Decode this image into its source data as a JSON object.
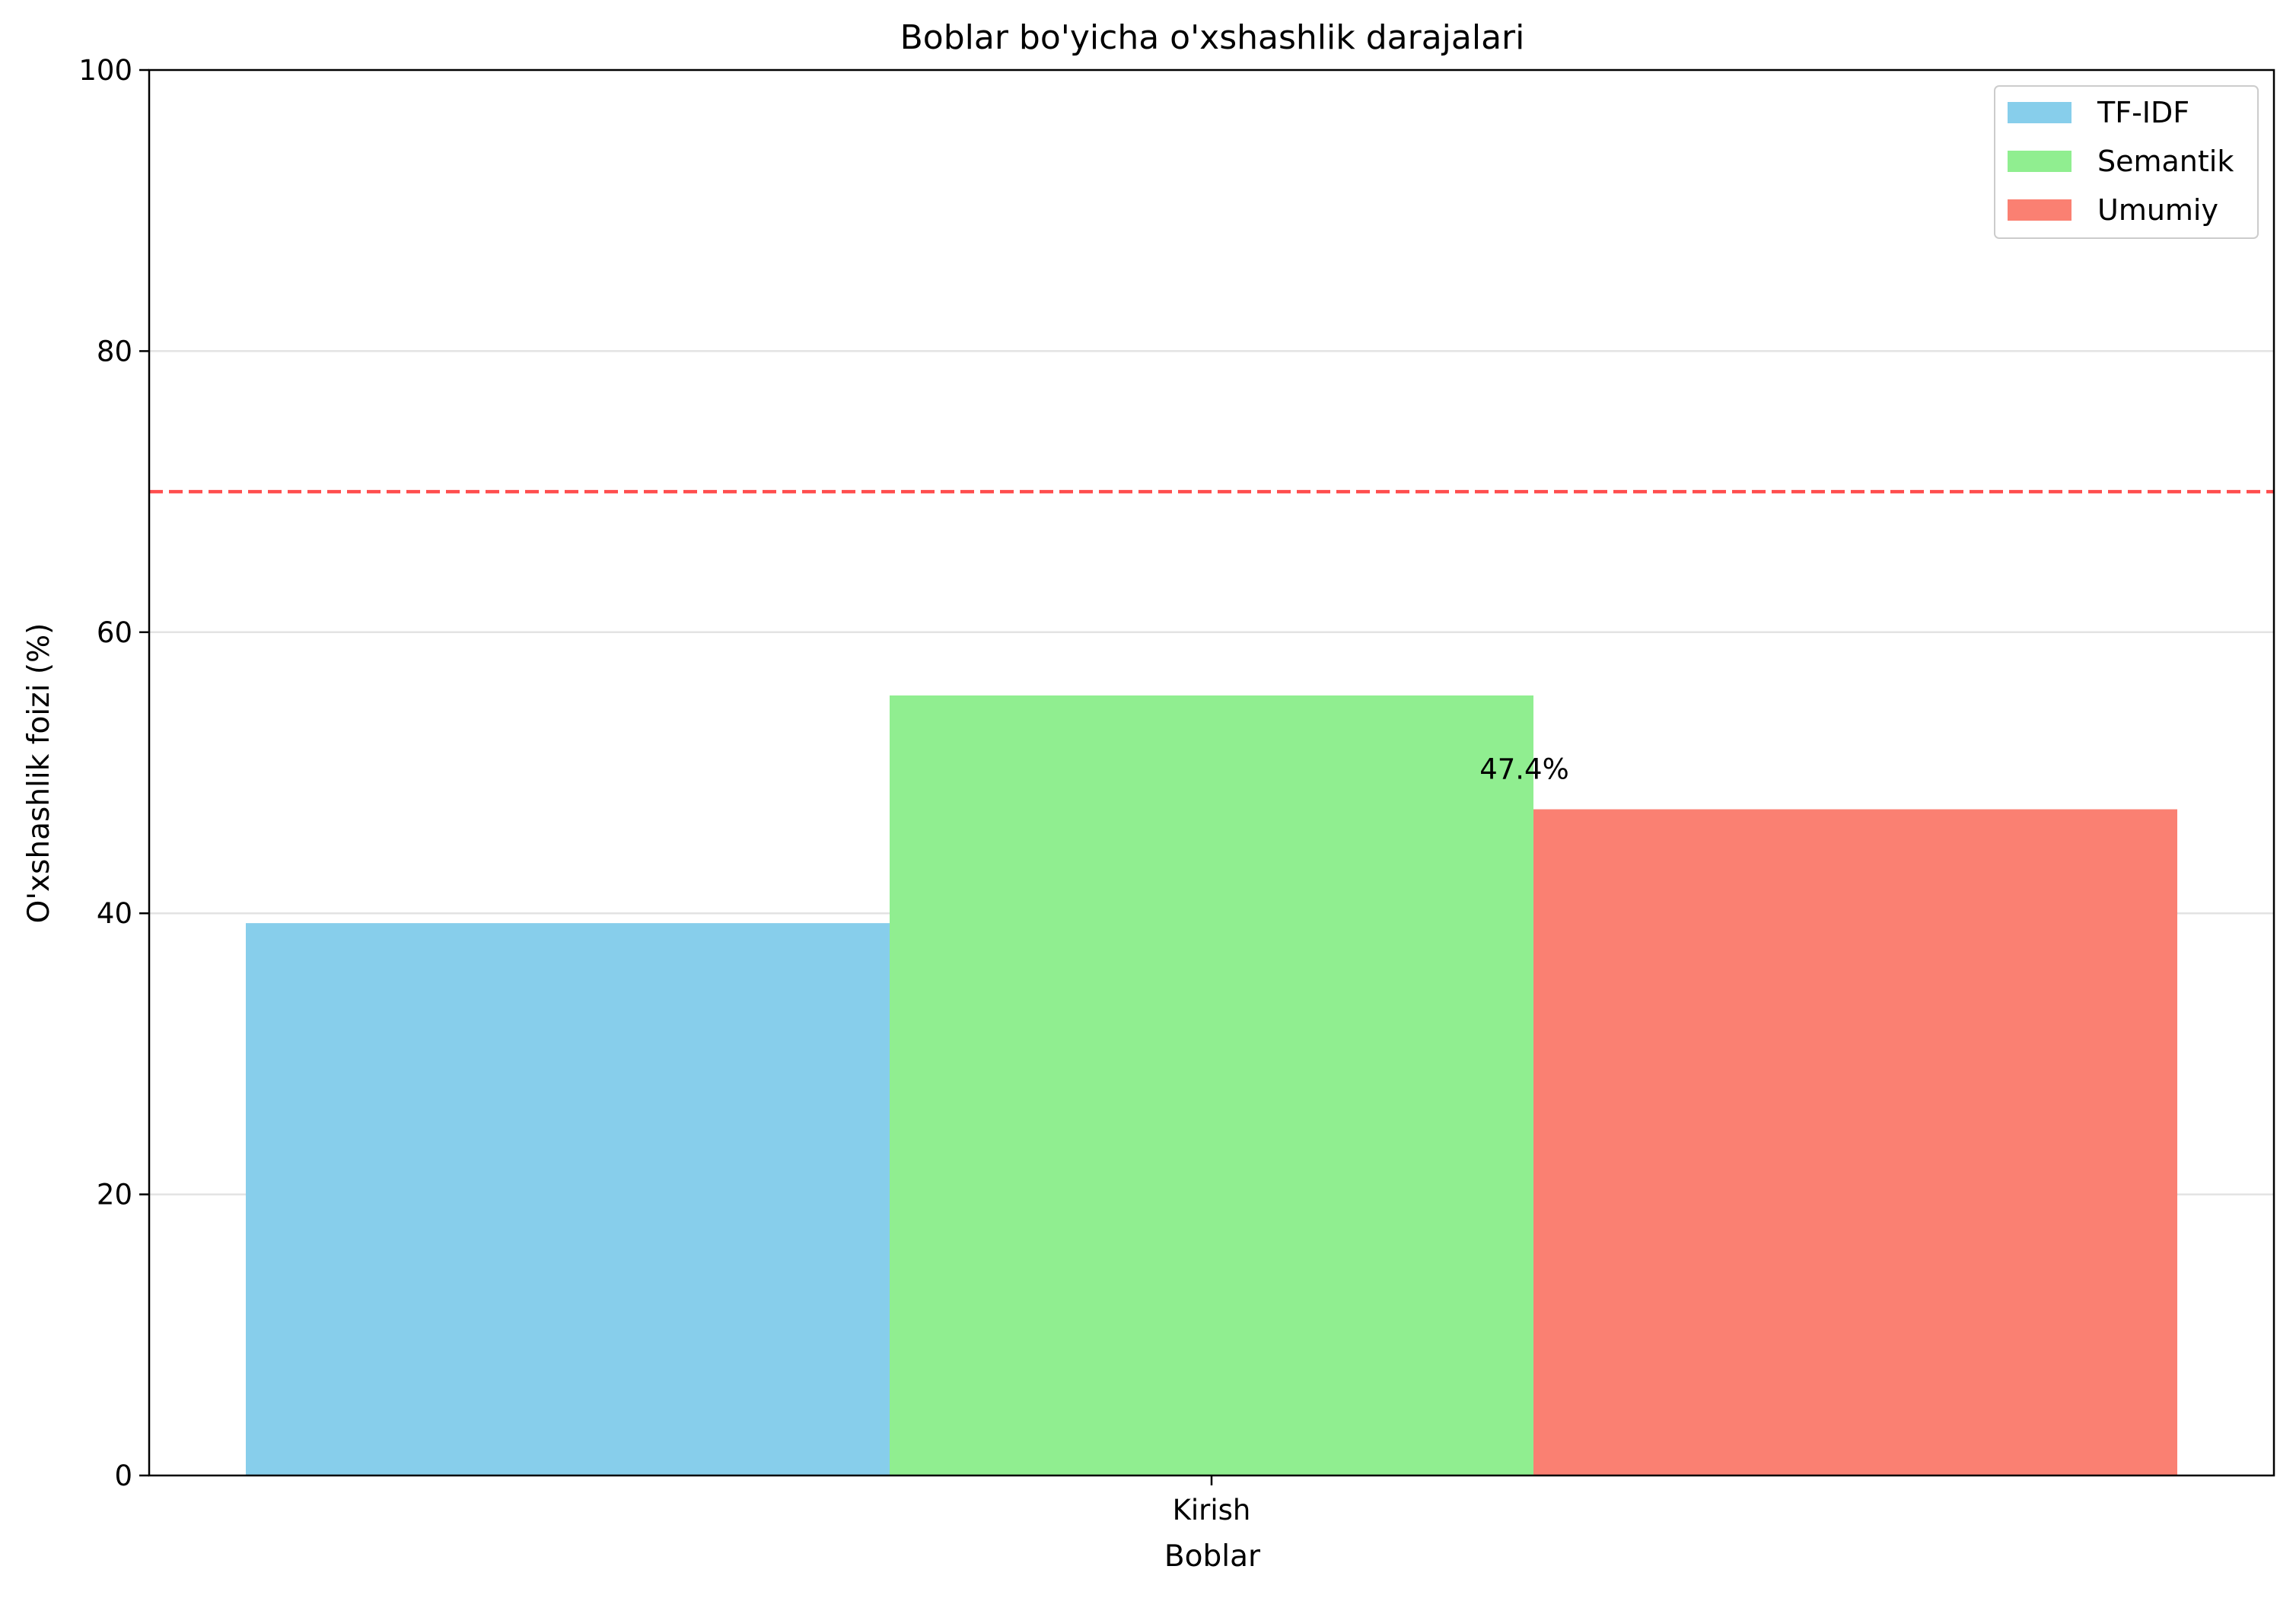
{
  "chart_data": {
    "type": "bar",
    "title": "Boblar bo'yicha o'xshashlik darajalari",
    "xlabel": "Boblar",
    "ylabel": "O'xshashlik foizi (%)",
    "categories": [
      "Kirish"
    ],
    "series": [
      {
        "name": "TF-IDF",
        "values": [
          39.3
        ],
        "color": "#87CEEB"
      },
      {
        "name": "Semantik",
        "values": [
          55.5
        ],
        "color": "#90EE90"
      },
      {
        "name": "Umumiy",
        "values": [
          47.4
        ],
        "color": "#FA8072"
      }
    ],
    "data_labels": [
      {
        "series": "Umumiy",
        "category": "Kirish",
        "text": "47.4%"
      }
    ],
    "threshold": {
      "value": 70,
      "color": "#FF4444",
      "style": "dashed"
    },
    "ylim": [
      0,
      100
    ],
    "yticks": [
      0,
      20,
      40,
      60,
      80,
      100
    ],
    "grid": {
      "y": true,
      "x": false
    },
    "legend_position": "top-right"
  }
}
